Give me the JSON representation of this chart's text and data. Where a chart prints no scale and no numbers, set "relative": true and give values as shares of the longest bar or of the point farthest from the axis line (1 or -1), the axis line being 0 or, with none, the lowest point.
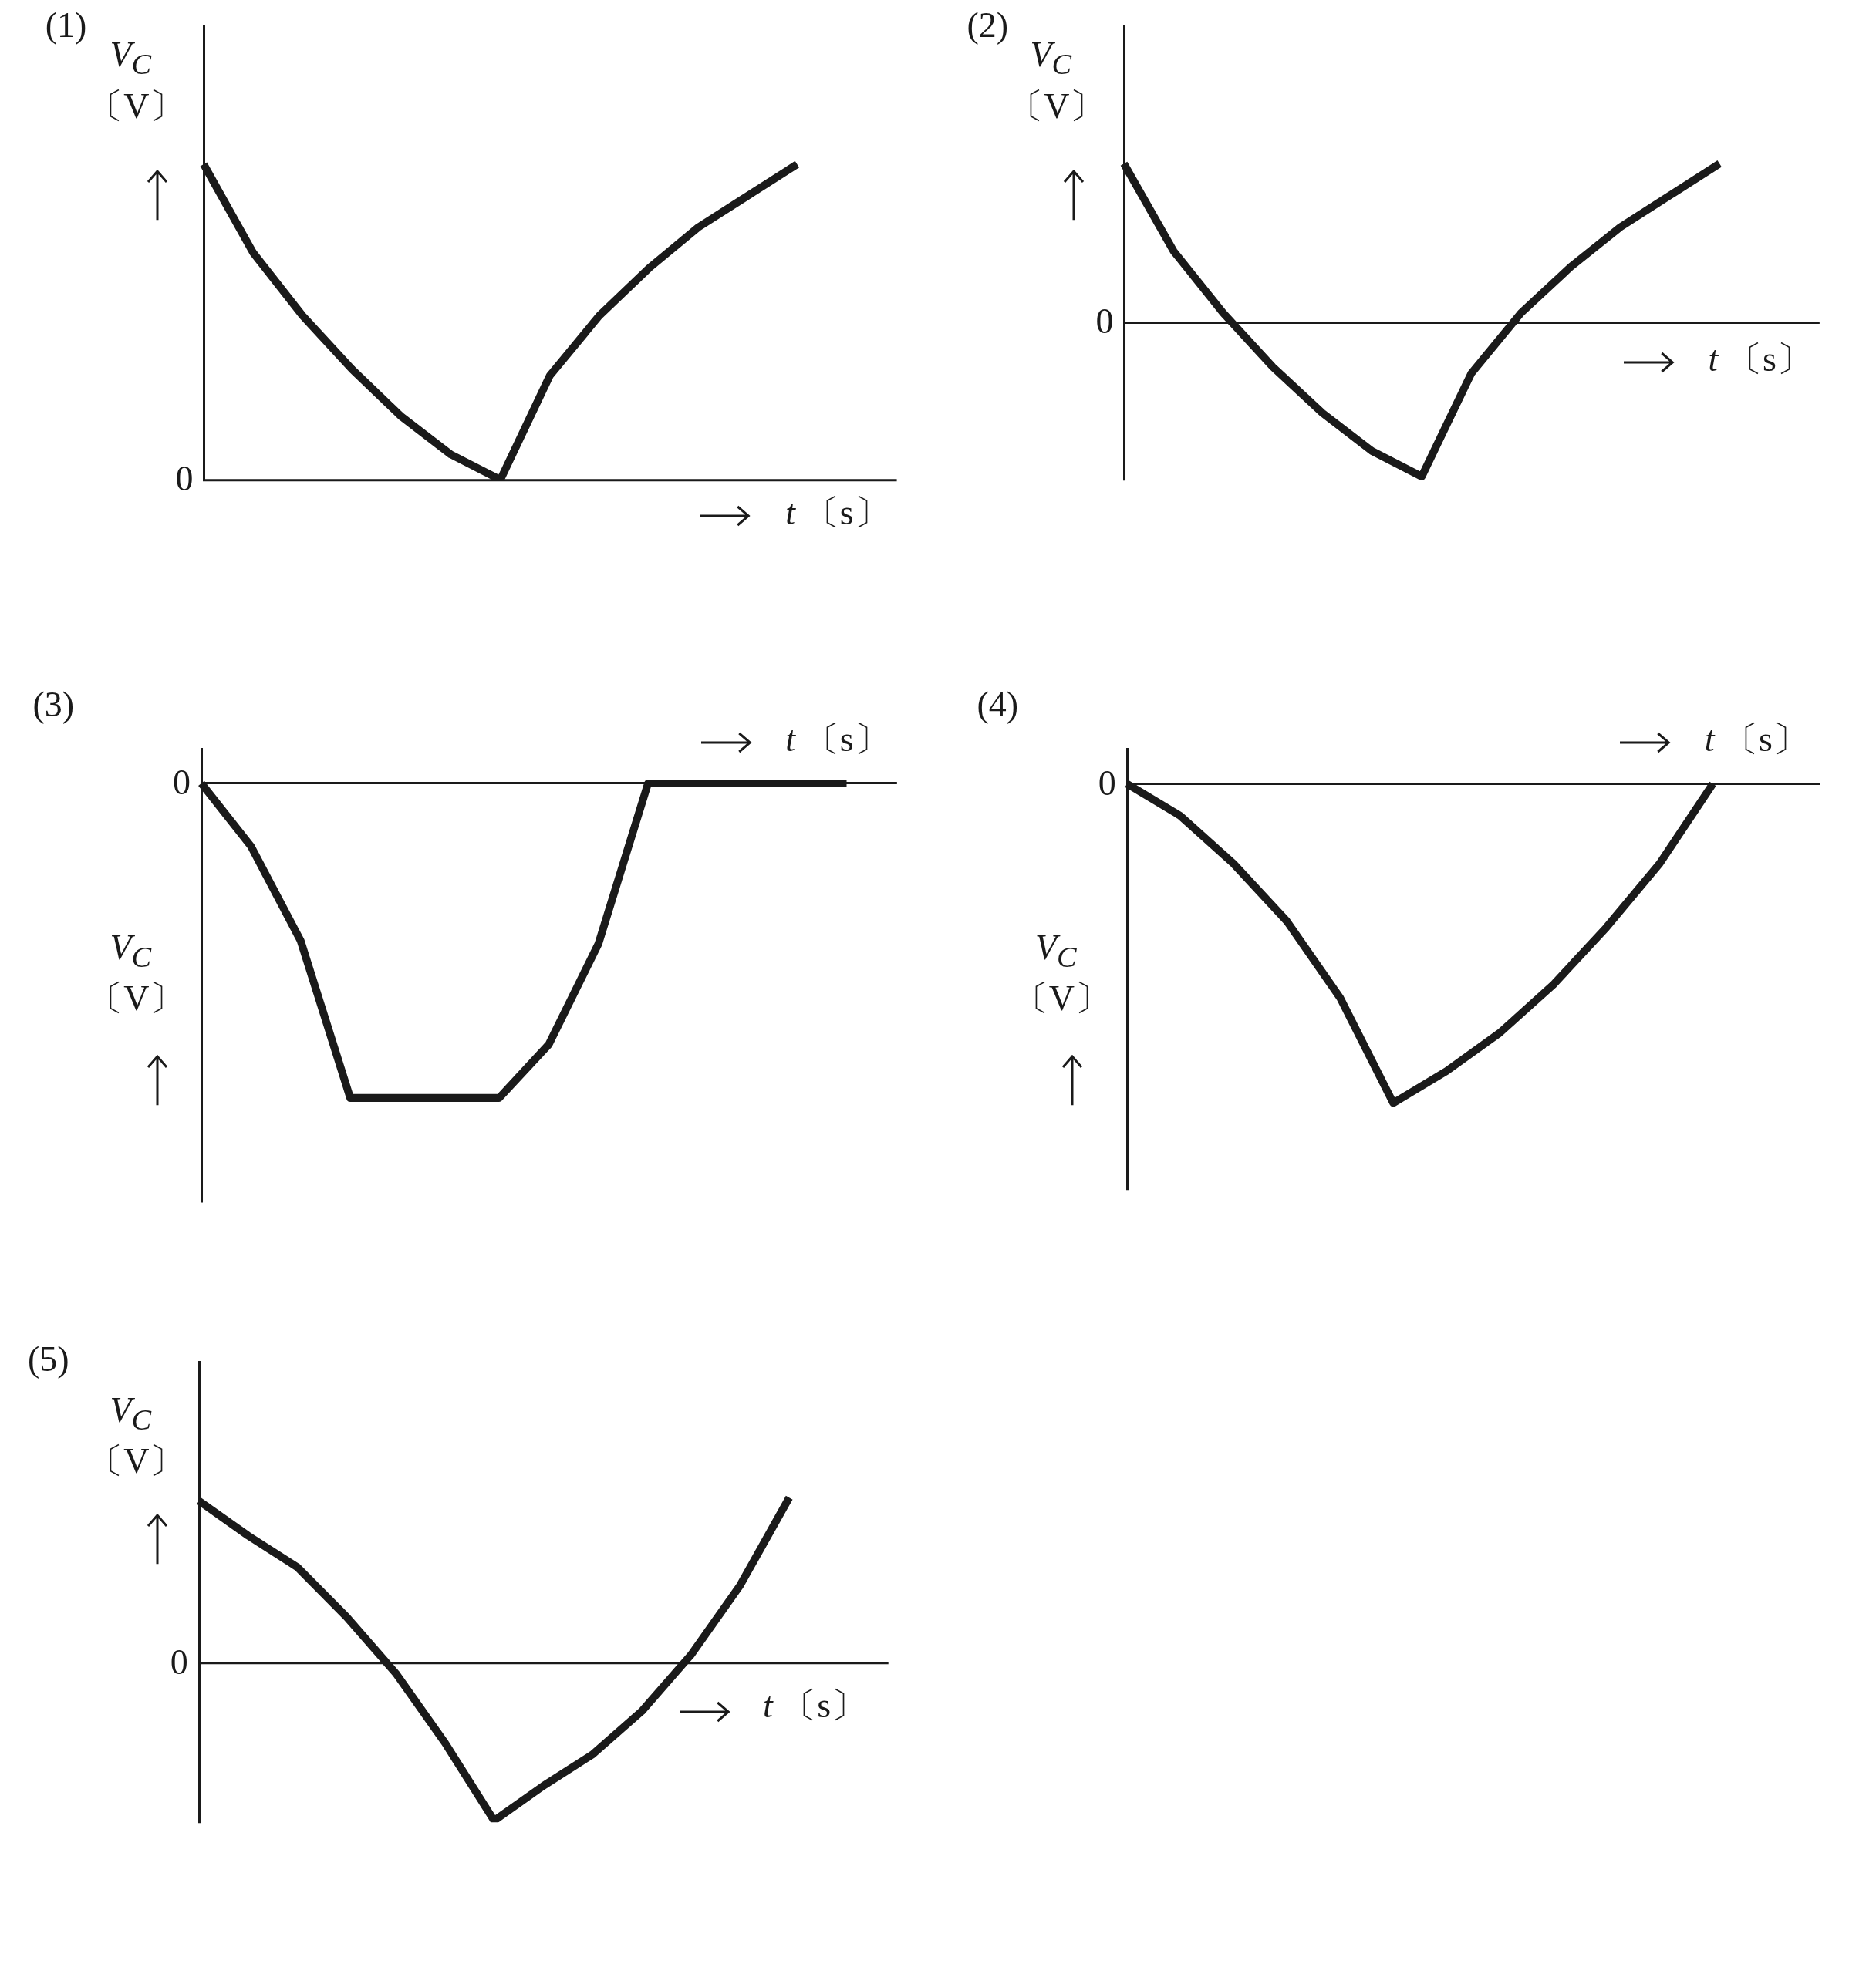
{
  "chart_data": [
    {
      "type": "line",
      "title": "(1)",
      "xlabel": "t 〔s〕",
      "ylabel": "V$_{C}$ 〔V〕",
      "relative": true,
      "annotations": [
        "0"
      ],
      "color": "#1a1a1a",
      "categories": [
        null,
        null,
        null,
        null,
        null,
        null,
        null,
        null,
        null,
        null,
        null,
        null,
        null,
        null,
        null
      ],
      "values": [
        1,
        0.72,
        0.52,
        0.35,
        0.2,
        0.08,
        0,
        0.33,
        0.52,
        0.67,
        0.8,
        0.9,
        1,
        null,
        null
      ]
    },
    {
      "type": "line",
      "title": "(2)",
      "xlabel": "t 〔s〕",
      "ylabel": "V$_{C}$ 〔V〕",
      "relative": true,
      "annotations": [
        "0"
      ],
      "color": "#1a1a1a",
      "categories": [
        null,
        null,
        null,
        null,
        null,
        null,
        null,
        null,
        null,
        null,
        null,
        null,
        null,
        null,
        null
      ],
      "values": [
        1,
        0.45,
        0.06,
        -0.28,
        -0.57,
        -0.81,
        -0.97,
        -0.32,
        0.06,
        0.35,
        0.6,
        0.8,
        1,
        null,
        null
      ]
    },
    {
      "type": "line",
      "title": "(3)",
      "xlabel": "t 〔s〕",
      "ylabel": "V$_{C}$ 〔V〕",
      "relative": true,
      "annotations": [
        "0"
      ],
      "color": "#1a1a1a",
      "categories": [
        null,
        null,
        null,
        null,
        null,
        null,
        null,
        null,
        null,
        null,
        null,
        null,
        null,
        null,
        null
      ],
      "values": [
        0,
        -0.2,
        -0.5,
        -1,
        -1,
        -1,
        -1,
        -0.83,
        -0.51,
        0,
        0,
        0,
        0,
        0,
        null
      ]
    },
    {
      "type": "line",
      "title": "(4)",
      "xlabel": "t 〔s〕",
      "ylabel": "V$_{C}$ 〔V〕",
      "relative": true,
      "annotations": [
        "0"
      ],
      "color": "#1a1a1a",
      "categories": [
        null,
        null,
        null,
        null,
        null,
        null,
        null,
        null,
        null,
        null,
        null,
        null,
        null,
        null
      ],
      "values": [
        0,
        -0.1,
        -0.25,
        -0.43,
        -0.67,
        -1,
        -0.9,
        -0.78,
        -0.63,
        -0.45,
        -0.25,
        0,
        null,
        null
      ]
    },
    {
      "type": "line",
      "title": "(5)",
      "xlabel": "t 〔s〕",
      "ylabel": "V$_{C}$ 〔V〕",
      "relative": true,
      "annotations": [
        "0"
      ],
      "color": "#1a1a1a",
      "categories": [
        null,
        null,
        null,
        null,
        null,
        null,
        null,
        null,
        null,
        null,
        null,
        null,
        null,
        null,
        null
      ],
      "values": [
        0.98,
        0.77,
        0.58,
        0.28,
        -0.06,
        -0.48,
        -0.95,
        -0.74,
        -0.55,
        -0.29,
        0.05,
        0.47,
        1,
        null,
        null
      ]
    }
  ]
}
